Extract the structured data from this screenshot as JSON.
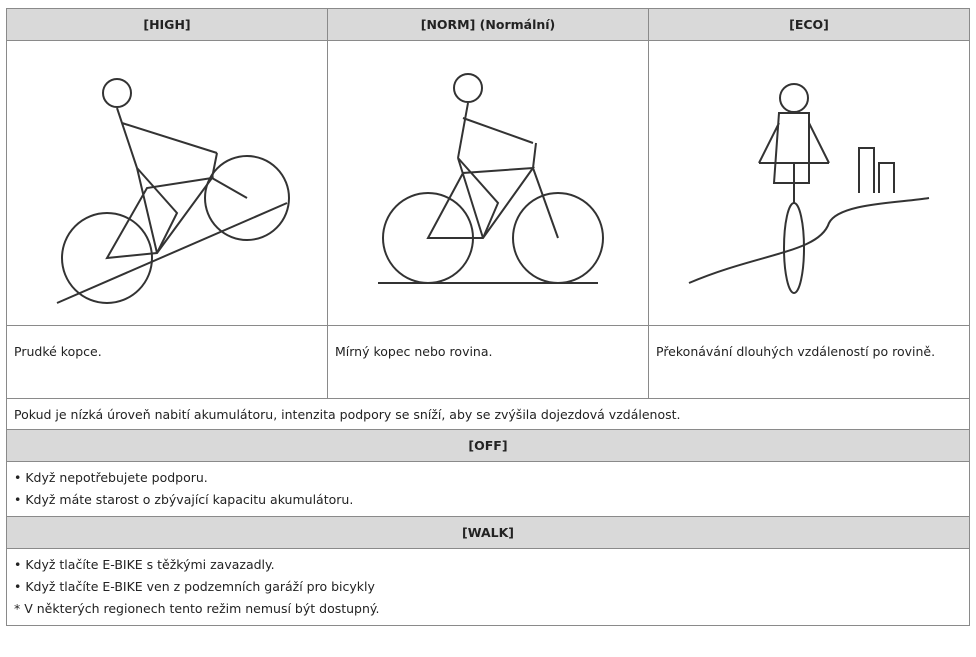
{
  "table": {
    "headers": [
      "[HIGH]",
      "[NORM] (Normální)",
      "[ECO]"
    ],
    "descriptions": [
      "Prudké kopce.",
      "Mírný kopec nebo rovina.",
      "Překonávání dlouhých vzdáleností po rovině."
    ],
    "note": "Pokud je nízká úroveň nabití akumulátoru, intenzita podpory se sníží, aby se zvýšila dojezdová vzdálenost.",
    "off": {
      "title": "[OFF]",
      "items": [
        "• Když nepotřebujete podporu.",
        "• Když máte starost o zbývající kapacitu akumulátoru."
      ]
    },
    "walk": {
      "title": "[WALK]",
      "items": [
        "• Když tlačíte E-BIKE s těžkými zavazadly.",
        "• Když tlačíte E-BIKE ven z podzemních garáží pro bicykly"
      ],
      "footnote": "* V některých regionech tento režim nemusí být dostupný."
    }
  }
}
